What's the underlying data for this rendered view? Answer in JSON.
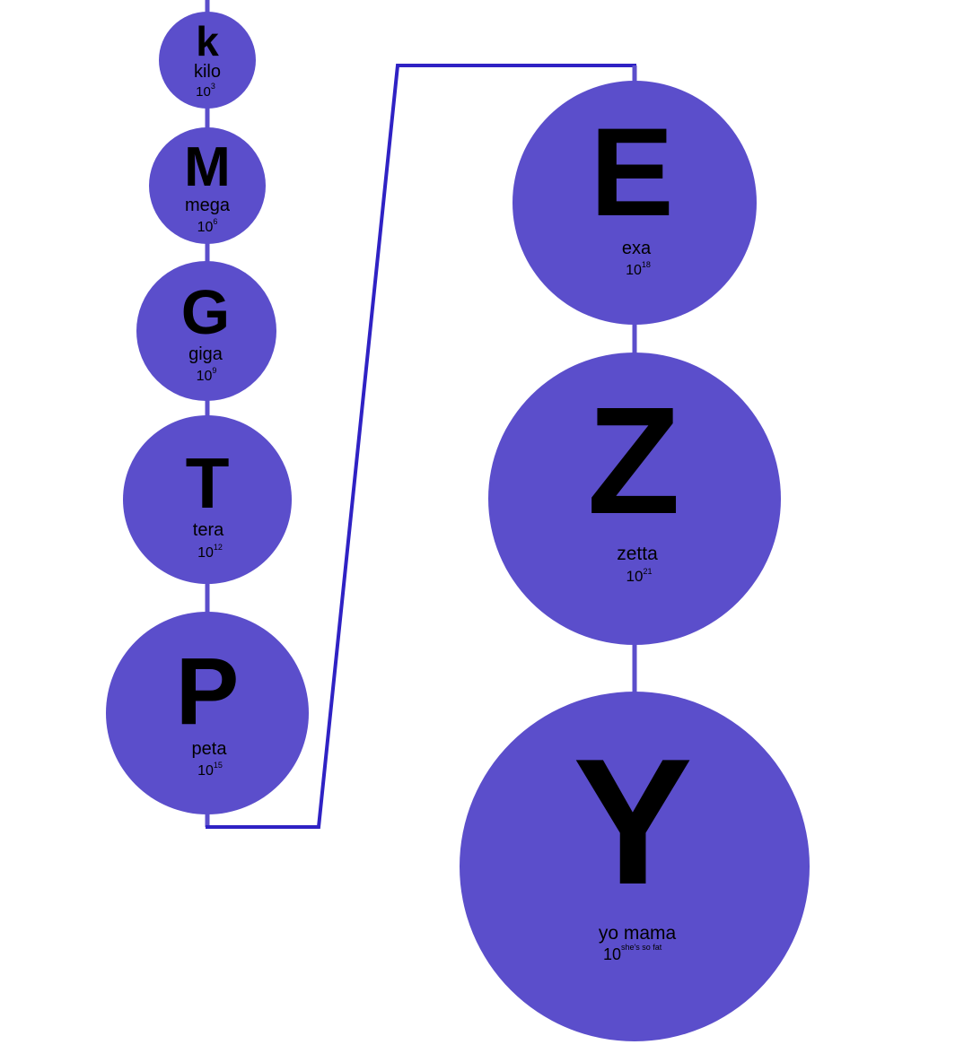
{
  "colors": {
    "circle_fill": "#5b4ecb",
    "connector": "#5b4ecb",
    "bracket": "#2f22c4",
    "text": "#000000",
    "background": "#ffffff"
  },
  "prefixes": [
    {
      "id": "kilo",
      "symbol": "k",
      "name": "kilo",
      "base": "10",
      "exponent": "3"
    },
    {
      "id": "mega",
      "symbol": "M",
      "name": "mega",
      "base": "10",
      "exponent": "6"
    },
    {
      "id": "giga",
      "symbol": "G",
      "name": "giga",
      "base": "10",
      "exponent": "9"
    },
    {
      "id": "tera",
      "symbol": "T",
      "name": "tera",
      "base": "10",
      "exponent": "12"
    },
    {
      "id": "peta",
      "symbol": "P",
      "name": "peta",
      "base": "10",
      "exponent": "15"
    },
    {
      "id": "exa",
      "symbol": "E",
      "name": "exa",
      "base": "10",
      "exponent": "18"
    },
    {
      "id": "zetta",
      "symbol": "Z",
      "name": "zetta",
      "base": "10",
      "exponent": "21"
    },
    {
      "id": "yo-mama",
      "symbol": "Y",
      "name": "yo mama",
      "base": "10",
      "exponent": "she's so fat"
    }
  ]
}
